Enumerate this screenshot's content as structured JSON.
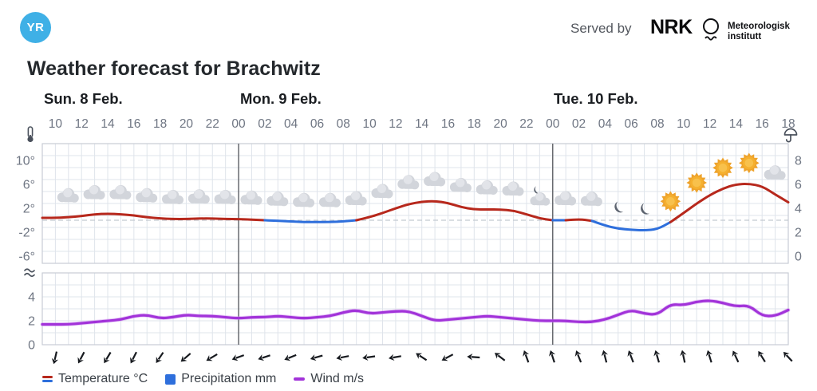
{
  "header": {
    "logo_text": "YR",
    "served_by": "Served by",
    "nrk_logo": "NRK",
    "met_institute_line1": "Meteorologisk",
    "met_institute_line2": "institutt"
  },
  "title": "Weather forecast for Brachwitz",
  "days": [
    {
      "label": "Sun. 8 Feb."
    },
    {
      "label": "Mon. 9 Feb."
    },
    {
      "label": "Tue. 10 Feb."
    }
  ],
  "legend": {
    "temperature": "Temperature °C",
    "precipitation": "Precipitation mm",
    "wind": "Wind m/s"
  },
  "colors": {
    "logo_blue": "#3fb0e6",
    "temp_red": "#b7281c",
    "temp_blue": "#2e6fdc",
    "wind_purple": "#a233d9",
    "sun_core": "#f5b02f",
    "sun_rays": "#eea32c",
    "moon": "#5d6470",
    "cloud": "#d2d5db",
    "grid": "#dfe4eb",
    "frame": "#c7ccd4",
    "separator": "#67696e",
    "dashed_zero": "#c3c9d1",
    "axis_text": "#6f7683",
    "arrow": "#171a1f"
  },
  "chart_data": {
    "type": "line",
    "title": "Weather forecast for Brachwitz",
    "time_start": "Sun 10:00",
    "time_step_hours": 1,
    "hour_tick_labels": [
      "10",
      "12",
      "14",
      "16",
      "18",
      "20",
      "22",
      "00",
      "02",
      "04",
      "06",
      "08",
      "10",
      "12",
      "14",
      "16",
      "18",
      "20",
      "22",
      "00",
      "02",
      "04",
      "06",
      "08",
      "10",
      "12",
      "14",
      "16",
      "18"
    ],
    "day_separator_tick_indices": [
      7,
      19
    ],
    "temp_axis": {
      "labels": [
        "10°",
        "6°",
        "2°",
        "-2°",
        "-6°"
      ],
      "values": [
        10,
        6,
        2,
        -2,
        -6
      ],
      "zero_line_dashed": true
    },
    "precip_axis": {
      "labels": [
        "8",
        "6",
        "4",
        "2",
        "0"
      ],
      "values": [
        8,
        6,
        4,
        2,
        0
      ]
    },
    "wind_axis": {
      "labels": [
        "4",
        "2",
        "0"
      ],
      "values": [
        4,
        2,
        0
      ]
    },
    "series": [
      {
        "name": "Temperature °C",
        "type": "line",
        "values": [
          0.4,
          0.5,
          0.7,
          1.0,
          1.1,
          1.0,
          0.8,
          0.5,
          0.3,
          0.2,
          0.2,
          0.3,
          0.3,
          0.2,
          0.2,
          0.1,
          0.0,
          -0.1,
          -0.2,
          -0.3,
          -0.3,
          -0.3,
          -0.2,
          0.0,
          0.5,
          1.2,
          2.0,
          2.7,
          3.1,
          3.2,
          2.9,
          2.2,
          1.8,
          1.8,
          1.8,
          1.6,
          1.0,
          0.3,
          0.0,
          0.0,
          0.2,
          -0.1,
          -0.9,
          -1.4,
          -1.6,
          -1.7,
          -1.5,
          -0.3,
          1.2,
          2.8,
          4.2,
          5.3,
          6.0,
          6.1,
          5.7,
          4.3,
          3.0
        ]
      },
      {
        "name": "Wind m/s",
        "type": "line",
        "values": [
          1.7,
          1.7,
          1.8,
          1.9,
          2.0,
          2.1,
          2.4,
          2.5,
          2.2,
          2.3,
          2.5,
          2.4,
          2.4,
          2.3,
          2.2,
          2.3,
          2.3,
          2.4,
          2.3,
          2.2,
          2.3,
          2.4,
          2.7,
          2.9,
          2.6,
          2.7,
          2.8,
          2.8,
          2.4,
          2.0,
          2.1,
          2.2,
          2.3,
          2.4,
          2.3,
          2.2,
          2.1,
          2.0,
          2.0,
          2.0,
          1.9,
          1.9,
          2.1,
          2.5,
          2.9,
          2.6,
          2.5,
          3.4,
          3.3,
          3.6,
          3.7,
          3.5,
          3.2,
          3.3,
          2.4,
          2.4,
          2.9
        ]
      }
    ],
    "precipitation": {
      "name": "Precipitation mm",
      "visible_bars": false,
      "note": "no precipitation shown (0 mm)"
    },
    "weather_icons": [
      "cloud",
      "cloud",
      "cloud",
      "cloud",
      "cloud",
      "cloud",
      "cloud",
      "cloud",
      "cloud",
      "cloud",
      "cloud",
      "cloud",
      "cloud",
      "cloud",
      "cloud",
      "cloud",
      "cloud",
      "cloud",
      "cloud-moon",
      "cloud",
      "cloud",
      "moon",
      "moon",
      "sun",
      "sun",
      "sun",
      "sun",
      "cloud"
    ],
    "wind_arrows_deg": [
      103,
      118,
      121,
      117,
      124,
      139,
      149,
      160,
      162,
      158,
      164,
      169,
      172,
      170,
      213,
      152,
      184,
      217,
      250,
      252,
      248,
      256,
      249,
      254,
      258,
      253,
      245,
      238,
      227
    ]
  }
}
